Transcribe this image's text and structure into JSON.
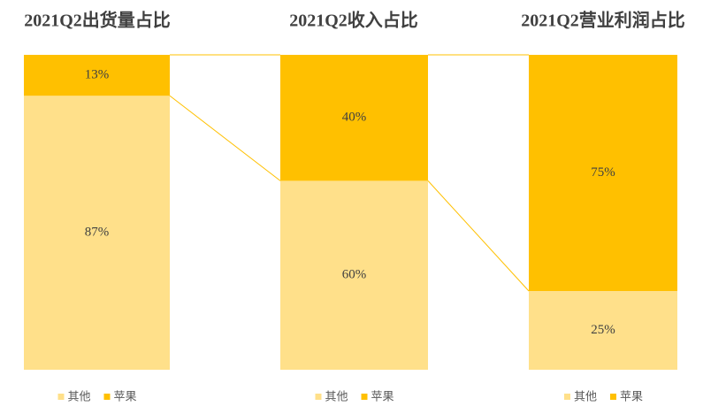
{
  "chart_data": [
    {
      "type": "bar",
      "title": "2021Q2出货量占比",
      "ylim": [
        0,
        100
      ],
      "series": [
        {
          "name": "其他",
          "color": "#FFE08A",
          "values": [
            87
          ],
          "value_labels": [
            "87%"
          ]
        },
        {
          "name": "苹果",
          "color": "#FFC000",
          "values": [
            13
          ],
          "value_labels": [
            "13%"
          ]
        }
      ]
    },
    {
      "type": "bar",
      "title": "2021Q2收入占比",
      "ylim": [
        0,
        100
      ],
      "series": [
        {
          "name": "其他",
          "color": "#FFE08A",
          "values": [
            60
          ],
          "value_labels": [
            "60%"
          ]
        },
        {
          "name": "苹果",
          "color": "#FFC000",
          "values": [
            40
          ],
          "value_labels": [
            "40%"
          ]
        }
      ]
    },
    {
      "type": "bar",
      "title": "2021Q2营业利润占比",
      "ylim": [
        0,
        100
      ],
      "series": [
        {
          "name": "其他",
          "color": "#FFE08A",
          "values": [
            25
          ],
          "value_labels": [
            "25%"
          ]
        },
        {
          "name": "苹果",
          "color": "#FFC000",
          "values": [
            75
          ],
          "value_labels": [
            "75%"
          ]
        }
      ]
    }
  ]
}
